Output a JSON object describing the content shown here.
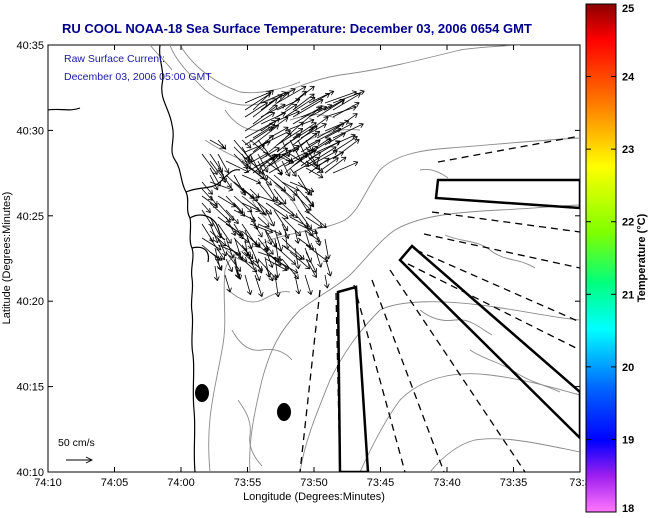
{
  "header": {
    "title": "RU COOL  NOAA-18  Sea Surface Temperature:  December 03, 2006 0654 GMT"
  },
  "annotations": {
    "current_label": "Raw Surface Current:",
    "current_time": "December 03, 2006 05:00 GMT",
    "scale_label": "50 cm/s"
  },
  "axes": {
    "xlabel": "Longitude (Degrees:Minutes)",
    "ylabel": "Latitude (Degrees:Minutes)",
    "x_ticks": [
      "74:10",
      "74:05",
      "74:00",
      "73:55",
      "73:50",
      "73:45",
      "73:40",
      "73:35",
      "73:3"
    ],
    "y_ticks": [
      "40:35",
      "40:30",
      "40:25",
      "40:20",
      "40:15",
      "40:10"
    ]
  },
  "colorbar": {
    "label": "Temperature (°C)",
    "ticks": [
      "25",
      "24",
      "23",
      "22",
      "21",
      "20",
      "19",
      "18"
    ]
  },
  "colors": {
    "title": "#00008b",
    "note": "#1a1aa0",
    "coast": "#000000",
    "contour": "#808080"
  }
}
